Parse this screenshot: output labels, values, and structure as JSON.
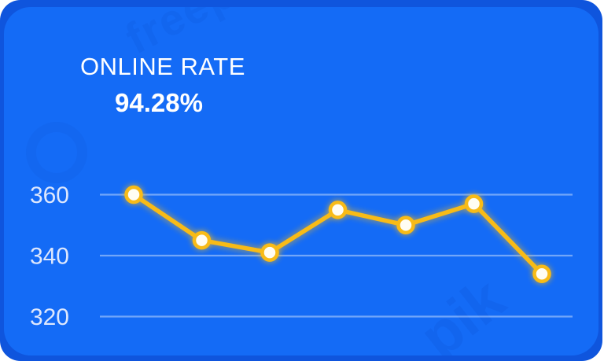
{
  "card": {
    "title": "ONLINE RATE",
    "value": "94.28%"
  },
  "watermarks": {
    "brand": "freepik",
    "partial": "pik"
  },
  "colors": {
    "page_bg": "#ffffff",
    "card_back": "#0f55dd",
    "card_bg": "#146bf6",
    "title_text": "#ffffff",
    "value_text": "#ffffff",
    "tick_text": "#dde7fd",
    "gridline": "rgba(255,255,255,0.40)",
    "line": "#f8bb17",
    "marker_fill": "#fffdf3",
    "watermark": "#0a3cb8"
  },
  "chart_data": {
    "type": "line",
    "title": "ONLINE RATE",
    "subtitle": "94.28%",
    "values": [
      360,
      345,
      341,
      355,
      350,
      357,
      334
    ],
    "yticks": [
      360,
      340,
      320
    ],
    "ylim": [
      316,
      368
    ],
    "xlabel": "",
    "ylabel": "",
    "grid": true,
    "legend": false,
    "x_tick_labels_visible": false
  }
}
